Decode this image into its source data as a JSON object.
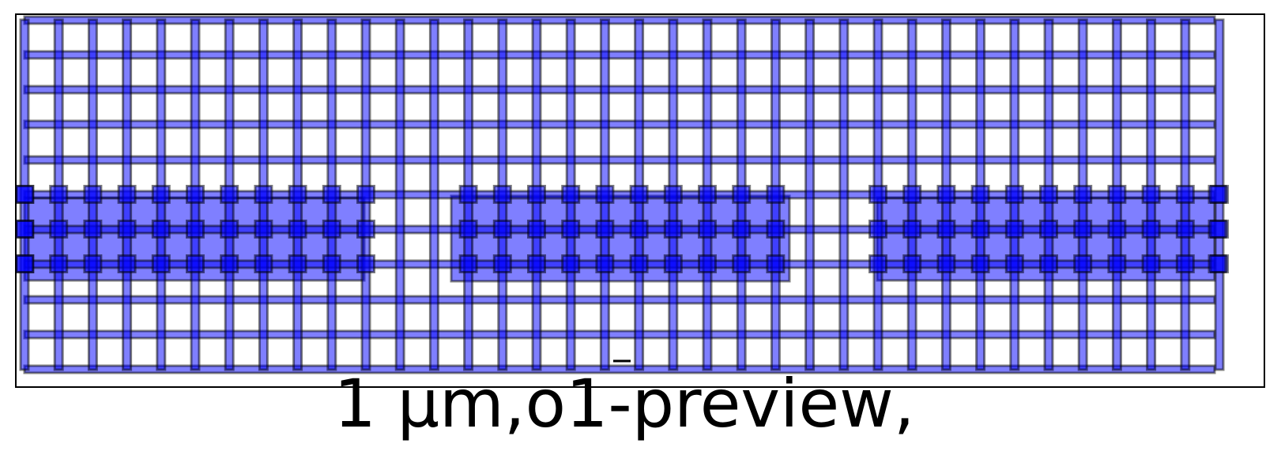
{
  "caption": {
    "text": "1 μm,o1-preview,"
  },
  "colors": {
    "fill": "#0000ff",
    "stroke": "#000000",
    "frame": "#000000",
    "background": "#ffffff"
  },
  "layout": {
    "vertical_wire_count": 36,
    "horizontal_wire_count": 10,
    "contact_row_count": 3,
    "pad_count": 3,
    "contacts_per_pad": [
      11,
      10,
      11
    ]
  }
}
